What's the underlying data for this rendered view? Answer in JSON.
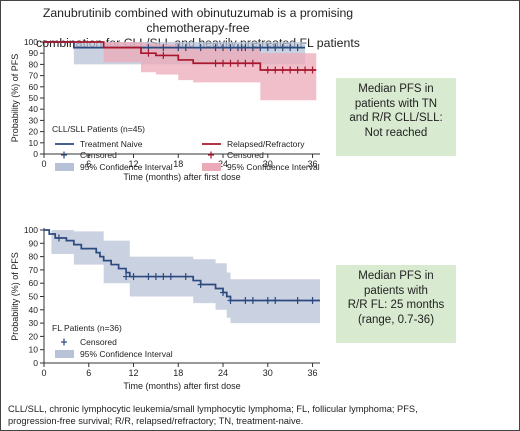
{
  "title": [
    "Zanubrutinib combined with obinutuzumab is a promising chemotherapy-free",
    "combination for CLL/SLL and heavily pretreated FL patients"
  ],
  "colors": {
    "tn_line": "#2b4a7f",
    "tn_ci": "#b8c2d6",
    "rr_line": "#a8172d",
    "rr_ci": "#ecaab8",
    "callout_bg": "#d8ead0",
    "axis": "#333333"
  },
  "callout_cll": [
    "Median PFS in",
    "patients with TN",
    "and R/R CLL/SLL:",
    "Not reached"
  ],
  "callout_fl": [
    "Median PFS in",
    "patients with",
    "R/R FL: 25 months",
    "(range, 0.7-36)"
  ],
  "footnote": [
    "CLL/SLL, chronic lymphocytic leukemia/small lymphocytic lymphoma; FL, follicular lymphoma; PFS,",
    "progression-free survival; R/R, relapsed/refractory; TN, treatment-naive."
  ],
  "chart_data": [
    {
      "type": "line",
      "xlabel": "Time (months) after first dose",
      "ylabel": "Probability (%) of PFS",
      "xlim": [
        0,
        37
      ],
      "ylim": [
        0,
        100
      ],
      "xticks": [
        0,
        6,
        12,
        18,
        24,
        30,
        36
      ],
      "yticks": [
        0,
        10,
        20,
        30,
        40,
        50,
        60,
        70,
        80,
        90,
        100
      ],
      "legend": {
        "heading": "CLL/SLL Patients (n=45)",
        "items": [
          "Treatment Naive",
          "Censored",
          "95% Confidence Interval",
          "Relapsed/Refractory",
          "Censored",
          "95% Confidence Interval"
        ]
      },
      "series": [
        {
          "name": "Treatment Naive",
          "color": "#2b4a7f",
          "ci_color": "#b8c2d6",
          "steps": [
            [
              0,
              100
            ],
            [
              4,
              100
            ],
            [
              4,
              95
            ],
            [
              35,
              95
            ]
          ],
          "censored": [
            [
              14,
              95
            ],
            [
              16,
              95
            ],
            [
              18,
              95
            ],
            [
              19,
              95
            ],
            [
              21,
              95
            ],
            [
              23,
              95
            ],
            [
              24,
              95
            ],
            [
              25,
              95
            ],
            [
              26,
              95
            ],
            [
              26.5,
              95
            ],
            [
              27,
              95
            ],
            [
              28,
              95
            ],
            [
              29,
              95
            ],
            [
              30,
              95
            ],
            [
              31,
              95
            ],
            [
              32,
              95
            ],
            [
              33,
              95
            ],
            [
              34,
              95
            ]
          ],
          "ci": [
            [
              0,
              100,
              100
            ],
            [
              4,
              80,
              100
            ],
            [
              13,
              80,
              100
            ],
            [
              35,
              80,
              100
            ]
          ]
        },
        {
          "name": "Relapsed/Refractory",
          "color": "#a8172d",
          "ci_color": "#ecaab8",
          "steps": [
            [
              0,
              100
            ],
            [
              8,
              100
            ],
            [
              8,
              95
            ],
            [
              13,
              95
            ],
            [
              13,
              90
            ],
            [
              15,
              90
            ],
            [
              15,
              88
            ],
            [
              18,
              88
            ],
            [
              18,
              84
            ],
            [
              20,
              84
            ],
            [
              20,
              81
            ],
            [
              29,
              81
            ],
            [
              29,
              75
            ],
            [
              36.5,
              75
            ]
          ],
          "censored": [
            [
              14,
              90
            ],
            [
              16,
              88
            ],
            [
              23,
              81
            ],
            [
              24,
              81
            ],
            [
              25,
              81
            ],
            [
              26,
              81
            ],
            [
              27,
              81
            ],
            [
              28,
              81
            ],
            [
              30,
              75
            ],
            [
              31,
              75
            ],
            [
              32,
              75
            ],
            [
              33,
              75
            ],
            [
              34,
              75
            ],
            [
              35,
              75
            ],
            [
              36,
              75
            ]
          ],
          "ci": [
            [
              0,
              100,
              100
            ],
            [
              8,
              82,
              100
            ],
            [
              13,
              73,
              99
            ],
            [
              15,
              71,
              98
            ],
            [
              18,
              66,
              96
            ],
            [
              20,
              64,
              95
            ],
            [
              29,
              48,
              90
            ],
            [
              36.5,
              48,
              90
            ]
          ]
        }
      ]
    },
    {
      "type": "line",
      "xlabel": "Time (months) after first dose",
      "ylabel": "Probability (%) of PFS",
      "xlim": [
        0,
        37
      ],
      "ylim": [
        0,
        100
      ],
      "xticks": [
        0,
        6,
        12,
        18,
        24,
        30,
        36
      ],
      "yticks": [
        0,
        10,
        20,
        30,
        40,
        50,
        60,
        70,
        80,
        90,
        100
      ],
      "legend": {
        "heading": "FL Patients (n=36)",
        "items": [
          "Censored",
          "95% Confidence Interval"
        ]
      },
      "series": [
        {
          "name": "FL",
          "color": "#2b4a7f",
          "ci_color": "#b8c2d6",
          "steps": [
            [
              0,
              100
            ],
            [
              0.7,
              97
            ],
            [
              1.5,
              94
            ],
            [
              3,
              92
            ],
            [
              4,
              89
            ],
            [
              5,
              86
            ],
            [
              7,
              83
            ],
            [
              7.5,
              80
            ],
            [
              8,
              77
            ],
            [
              9,
              74
            ],
            [
              10,
              71
            ],
            [
              11,
              68
            ],
            [
              11.5,
              65
            ],
            [
              20,
              65
            ],
            [
              20,
              62
            ],
            [
              21,
              62
            ],
            [
              21,
              59
            ],
            [
              23,
              59
            ],
            [
              23,
              56
            ],
            [
              24,
              56
            ],
            [
              24,
              53
            ],
            [
              24.5,
              53
            ],
            [
              24.5,
              50
            ],
            [
              25,
              50
            ],
            [
              25,
              47
            ],
            [
              37,
              47
            ]
          ],
          "censored": [
            [
              2,
              94
            ],
            [
              11,
              65
            ],
            [
              12,
              65
            ],
            [
              14,
              65
            ],
            [
              15,
              65
            ],
            [
              16,
              65
            ],
            [
              17,
              65
            ],
            [
              19,
              65
            ],
            [
              21,
              59
            ],
            [
              24,
              53
            ],
            [
              25,
              47
            ],
            [
              27,
              47
            ],
            [
              28,
              47
            ],
            [
              30,
              47
            ],
            [
              31,
              47
            ],
            [
              34,
              47
            ],
            [
              36,
              47
            ]
          ],
          "ci": [
            [
              0,
              100,
              100
            ],
            [
              1,
              82,
              100
            ],
            [
              4,
              74,
              99
            ],
            [
              8,
              60,
              92
            ],
            [
              11.5,
              50,
              80
            ],
            [
              20,
              45,
              78
            ],
            [
              23,
              40,
              75
            ],
            [
              24.5,
              34,
              68
            ],
            [
              25,
              30,
              63
            ],
            [
              37,
              27,
              63
            ]
          ]
        }
      ]
    }
  ]
}
